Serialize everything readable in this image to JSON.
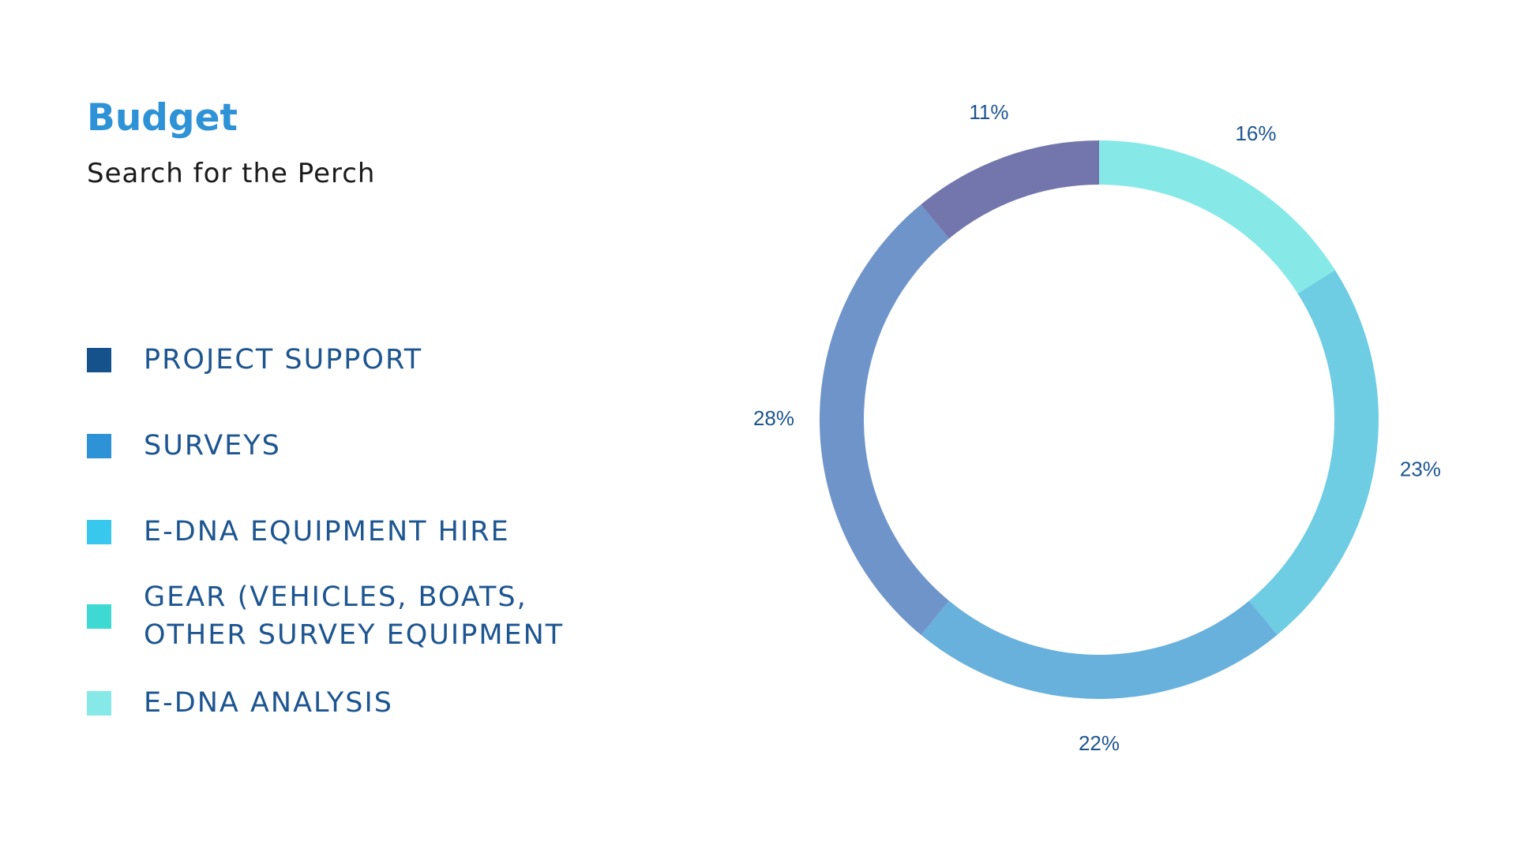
{
  "header": {
    "title": "Budget",
    "subtitle": "Search for the Perch"
  },
  "legend": [
    {
      "label": "PROJECT SUPPORT",
      "color": "#15528c"
    },
    {
      "label": "SURVEYS",
      "color": "#2e92d6"
    },
    {
      "label": "E-DNA EQUIPMENT HIRE",
      "color": "#39c8ed"
    },
    {
      "label": "GEAR (VEHICLES, BOATS,\nOTHER SURVEY EQUIPMENT",
      "color": "#3dd9d2"
    },
    {
      "label": "E-DNA ANALYSIS",
      "color": "#86e9e8"
    }
  ],
  "chart_data": {
    "type": "pie",
    "style": "donut",
    "values": [
      16,
      23,
      22,
      28,
      11
    ],
    "labels": [
      "16%",
      "23%",
      "22%",
      "28%",
      "11%"
    ],
    "colors": [
      "#86e9e8",
      "#6ecde3",
      "#68b1dc",
      "#6e94c9",
      "#7276ad"
    ],
    "start": "top",
    "direction": "clockwise"
  }
}
